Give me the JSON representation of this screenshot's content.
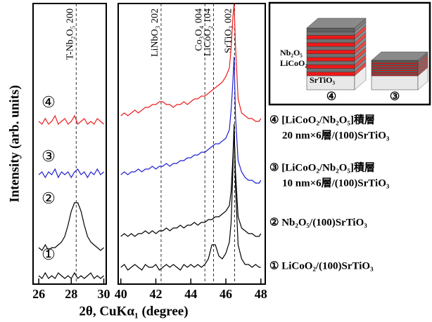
{
  "chart_data": [
    {
      "type": "line",
      "ylabel": "Intensity (arb. units)",
      "xlabel": "2θ, CuKα₁ (degree)",
      "xlim": [
        25.65,
        30.15
      ],
      "xticks": [
        26,
        28,
        30
      ],
      "ylim": [
        0,
        100
      ],
      "x": [
        26,
        26.2,
        26.4,
        26.6,
        26.8,
        27,
        27.2,
        27.4,
        27.6,
        27.8,
        28,
        28.2,
        28.4,
        28.6,
        28.8,
        29,
        29.2,
        29.4,
        29.6,
        29.8,
        30
      ],
      "series": [
        {
          "name": "①",
          "color": "#000000",
          "values": [
            3,
            2,
            4,
            2,
            3,
            2,
            4,
            3,
            2,
            3,
            2,
            4,
            2,
            3,
            2,
            3,
            4,
            2,
            3,
            2,
            3
          ]
        },
        {
          "name": "②",
          "color": "#000000",
          "values": [
            13,
            12,
            14,
            12,
            13,
            13,
            14,
            15,
            17,
            21,
            26,
            29,
            29,
            26,
            21,
            17,
            15,
            14,
            13,
            12,
            13
          ]
        },
        {
          "name": "③",
          "color": "#1f1fd0",
          "values": [
            39,
            40,
            38,
            40,
            39,
            41,
            38,
            40,
            39,
            40,
            38,
            40,
            41,
            39,
            40,
            38,
            40,
            39,
            41,
            39,
            40
          ]
        },
        {
          "name": "④",
          "color": "#ee1c1c",
          "values": [
            58,
            57,
            59,
            57,
            58,
            60,
            57,
            58,
            59,
            57,
            58,
            60,
            57,
            58,
            59,
            57,
            58,
            57,
            59,
            58,
            57
          ]
        }
      ],
      "annotations": [
        {
          "x": 28.3,
          "text": "T-Nb₂O₅ 200"
        }
      ]
    },
    {
      "type": "line",
      "xlim": [
        39.85,
        48.25
      ],
      "xticks": [
        40,
        42,
        44,
        46,
        48
      ],
      "ylim": [
        0,
        100
      ],
      "x": [
        40,
        40.2,
        40.4,
        40.6,
        40.8,
        41,
        41.2,
        41.4,
        41.6,
        41.8,
        42,
        42.2,
        42.4,
        42.6,
        42.8,
        43,
        43.2,
        43.4,
        43.6,
        43.8,
        44,
        44.2,
        44.4,
        44.6,
        44.8,
        45,
        45.2,
        45.4,
        45.6,
        45.8,
        46,
        46.2,
        46.3,
        46.4,
        46.47,
        46.55,
        46.7,
        46.9,
        47.1,
        47.3,
        47.5,
        47.7,
        47.9,
        48
      ],
      "series": [
        {
          "color": "#000000",
          "values": [
            6,
            7,
            5,
            6,
            7,
            6,
            5,
            7,
            6,
            6,
            7,
            5,
            6,
            7,
            6,
            7,
            6,
            5,
            7,
            6,
            7,
            6,
            7,
            6,
            7,
            9,
            14,
            14,
            10,
            9,
            11,
            15,
            22,
            40,
            57,
            35,
            14,
            9,
            7,
            7,
            6,
            7,
            6,
            6
          ]
        },
        {
          "color": "#000000",
          "values": [
            17,
            18,
            17,
            18,
            17,
            18,
            18,
            19,
            18,
            19,
            18,
            19,
            19,
            20,
            19,
            20,
            20,
            21,
            20,
            21,
            21,
            22,
            21,
            22,
            22,
            23,
            23,
            24,
            24,
            25,
            26,
            28,
            33,
            45,
            56,
            40,
            24,
            20,
            19,
            18,
            18,
            17,
            17,
            18
          ]
        },
        {
          "color": "#1f1fd0",
          "values": [
            39,
            40,
            39,
            40,
            40,
            41,
            40,
            41,
            41,
            42,
            41,
            42,
            42,
            43,
            42,
            43,
            43,
            44,
            44,
            45,
            45,
            46,
            46,
            47,
            47,
            48,
            49,
            50,
            50,
            51,
            52,
            55,
            62,
            72,
            81,
            60,
            44,
            40,
            38,
            37,
            37,
            36,
            36,
            37
          ]
        },
        {
          "color": "#ee1c1c",
          "values": [
            60,
            61,
            60,
            61,
            62,
            61,
            62,
            63,
            63,
            64,
            64,
            65,
            65,
            64,
            64,
            63,
            64,
            64,
            65,
            64,
            65,
            66,
            66,
            67,
            67,
            68,
            69,
            70,
            71,
            72,
            74,
            77,
            84,
            95,
            100,
            85,
            66,
            61,
            60,
            59,
            59,
            58,
            58,
            59
          ]
        }
      ],
      "annotations": [
        {
          "x": 42.3,
          "text": "LiNbO₃ 202"
        },
        {
          "x": 44.8,
          "text": "Co₃O₄ 004"
        },
        {
          "x": 45.3,
          "text": "LiCoO₂ 104"
        },
        {
          "x": 46.5,
          "text": "SrTiO₃ 002"
        }
      ]
    }
  ],
  "descriptions": [
    [
      "④ [LiCoO₂/Nb₂O₅]積層",
      "20 nm×6層/(100)SrTiO₃"
    ],
    [
      "③ [LiCoO₂/Nb₂O₅]積層",
      "10 nm×6層/(100)SrTiO₃"
    ],
    [
      "② Nb₂O₅/(100)SrTiO₃"
    ],
    [
      "① LiCoO₂/(100)SrTiO₃"
    ]
  ],
  "inset": {
    "labels": [
      "Nb₂O₅",
      "LiCoO₂",
      "SrTiO₃",
      "④",
      "③"
    ]
  }
}
